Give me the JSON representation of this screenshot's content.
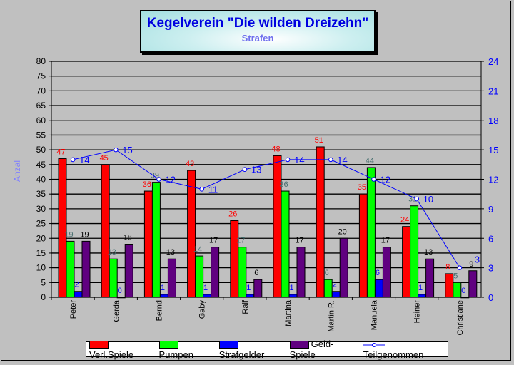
{
  "chart_data": {
    "type": "bar",
    "title": "Kegelverein \"Die wilden Dreizehn\"",
    "subtitle": "Strafen",
    "ylabel": "Anzal",
    "ylim": [
      0,
      80
    ],
    "yticks_step": 5,
    "y2lim": [
      0,
      24
    ],
    "y2ticks_step": 3,
    "grid": true,
    "legend_placement": "bottom",
    "categories": [
      "Peter",
      "Gerda",
      "Bernd",
      "Gaby",
      "Ralf",
      "Martina",
      "Martin R.",
      "Manuela",
      "Heiner",
      "Christiane"
    ],
    "series": [
      {
        "name": "Verl.Spiele",
        "type": "bar",
        "color": "#ff0000",
        "label_color": "#ff0000",
        "values": [
          47,
          45,
          36,
          43,
          26,
          48,
          51,
          35,
          24,
          8
        ]
      },
      {
        "name": "Pumpen",
        "type": "bar",
        "color": "#00ff00",
        "label_color": "#4a7070",
        "values": [
          19,
          13,
          39,
          14,
          17,
          36,
          6,
          44,
          31,
          5
        ]
      },
      {
        "name": "Strafgelder",
        "type": "bar",
        "color": "#0000ff",
        "label_color": "#0000ff",
        "values": [
          2,
          0,
          1,
          1,
          1,
          1,
          2,
          6,
          1,
          0
        ]
      },
      {
        "name": "Geld-Spiele",
        "type": "bar",
        "color": "#600080",
        "label_color": "#000000",
        "values": [
          19,
          18,
          13,
          17,
          6,
          17,
          20,
          17,
          13,
          9
        ]
      },
      {
        "name": "Teilgenommen",
        "type": "line",
        "axis": "right",
        "color": "#0000ff",
        "label_color": "#0000ff",
        "values": [
          14,
          15,
          12,
          11,
          13,
          14,
          14,
          12,
          10,
          3
        ]
      }
    ]
  }
}
